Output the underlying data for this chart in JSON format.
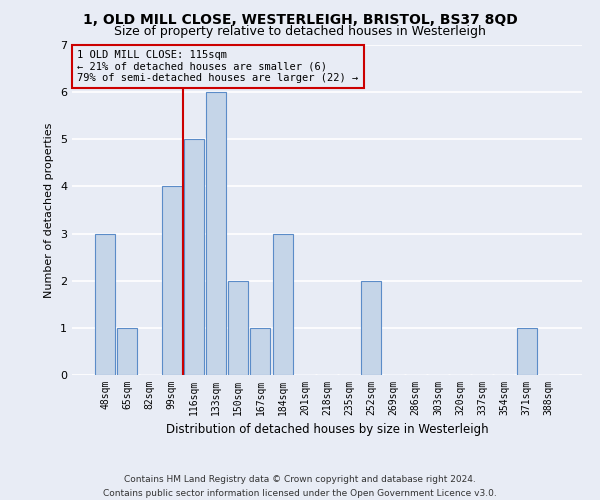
{
  "title1": "1, OLD MILL CLOSE, WESTERLEIGH, BRISTOL, BS37 8QD",
  "title2": "Size of property relative to detached houses in Westerleigh",
  "xlabel": "Distribution of detached houses by size in Westerleigh",
  "ylabel": "Number of detached properties",
  "footnote1": "Contains HM Land Registry data © Crown copyright and database right 2024.",
  "footnote2": "Contains public sector information licensed under the Open Government Licence v3.0.",
  "categories": [
    "48sqm",
    "65sqm",
    "82sqm",
    "99sqm",
    "116sqm",
    "133sqm",
    "150sqm",
    "167sqm",
    "184sqm",
    "201sqm",
    "218sqm",
    "235sqm",
    "252sqm",
    "269sqm",
    "286sqm",
    "303sqm",
    "320sqm",
    "337sqm",
    "354sqm",
    "371sqm",
    "388sqm"
  ],
  "values": [
    3,
    1,
    0,
    4,
    5,
    6,
    2,
    1,
    3,
    0,
    0,
    0,
    2,
    0,
    0,
    0,
    0,
    0,
    0,
    1,
    0
  ],
  "bar_color": "#c5d5e8",
  "bar_edge_color": "#5b8cc8",
  "highlight_bar_index": 4,
  "highlight_line_color": "#cc0000",
  "annotation_line1": "1 OLD MILL CLOSE: 115sqm",
  "annotation_line2": "← 21% of detached houses are smaller (6)",
  "annotation_line3": "79% of semi-detached houses are larger (22) →",
  "annotation_box_edgecolor": "#cc0000",
  "ylim": [
    0,
    7
  ],
  "yticks": [
    0,
    1,
    2,
    3,
    4,
    5,
    6,
    7
  ],
  "background_color": "#e8ecf5",
  "grid_color": "#ffffff",
  "title1_fontsize": 10,
  "title2_fontsize": 9,
  "xlabel_fontsize": 8.5,
  "ylabel_fontsize": 8,
  "tick_fontsize": 7,
  "ann_fontsize": 7.5,
  "footnote_fontsize": 6.5
}
